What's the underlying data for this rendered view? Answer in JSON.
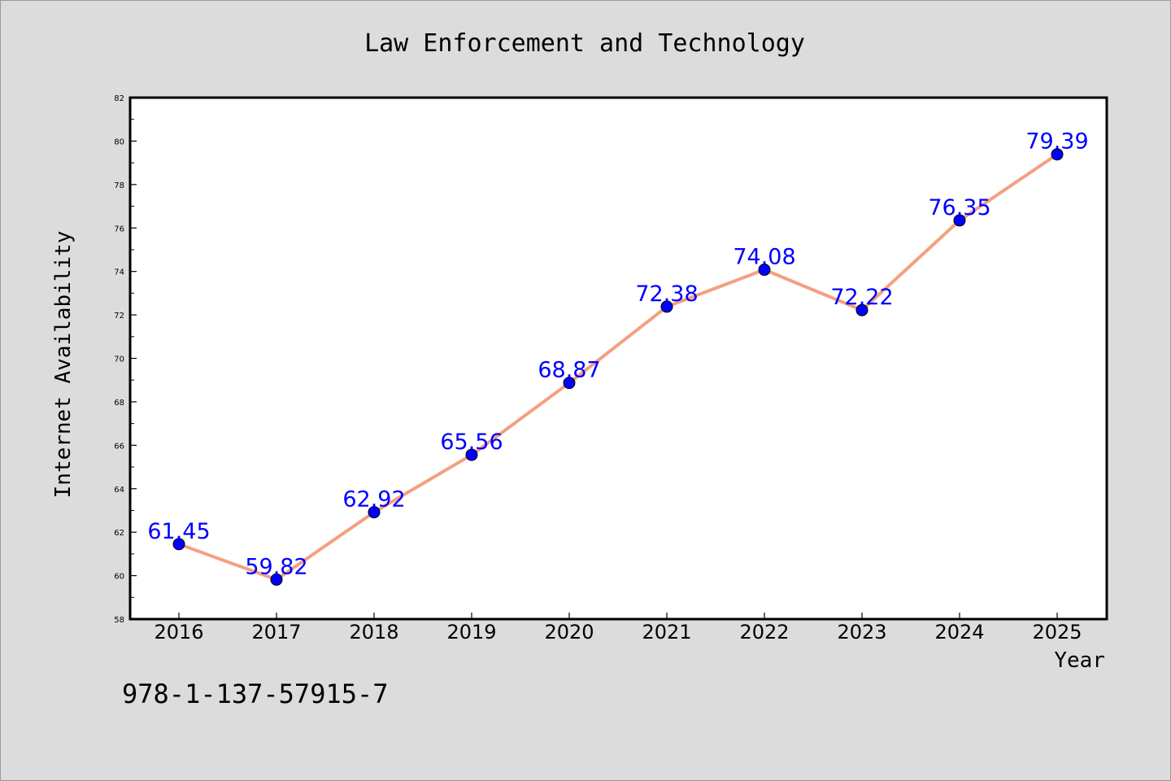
{
  "chart_data": {
    "type": "line",
    "title": "Law Enforcement and Technology",
    "xlabel": "Year",
    "ylabel": "Internet Availability",
    "categories": [
      "2016",
      "2017",
      "2018",
      "2019",
      "2020",
      "2021",
      "2022",
      "2023",
      "2024",
      "2025"
    ],
    "series": [
      {
        "values": [
          61.45,
          59.82,
          62.92,
          65.56,
          68.87,
          72.38,
          74.08,
          72.22,
          76.35,
          79.39
        ],
        "data_labels": [
          "61.45",
          "59.82",
          "62.92",
          "65.56",
          "68.87",
          "72.38",
          "74.08",
          "72.22",
          "76.35",
          "79.39"
        ],
        "line_color": "#f4a080",
        "marker_color": "#0000ff"
      }
    ],
    "ylim": [
      58,
      82
    ],
    "yticks": [
      "58",
      "60",
      "62",
      "64",
      "66",
      "68",
      "70",
      "72",
      "74",
      "76",
      "78",
      "80",
      "82"
    ],
    "grid": false,
    "legend": "none"
  },
  "footer": {
    "code": "978-1-137-57915-7"
  },
  "colors": {
    "background": "#dcdcdc",
    "plot_background": "#ffffff"
  }
}
